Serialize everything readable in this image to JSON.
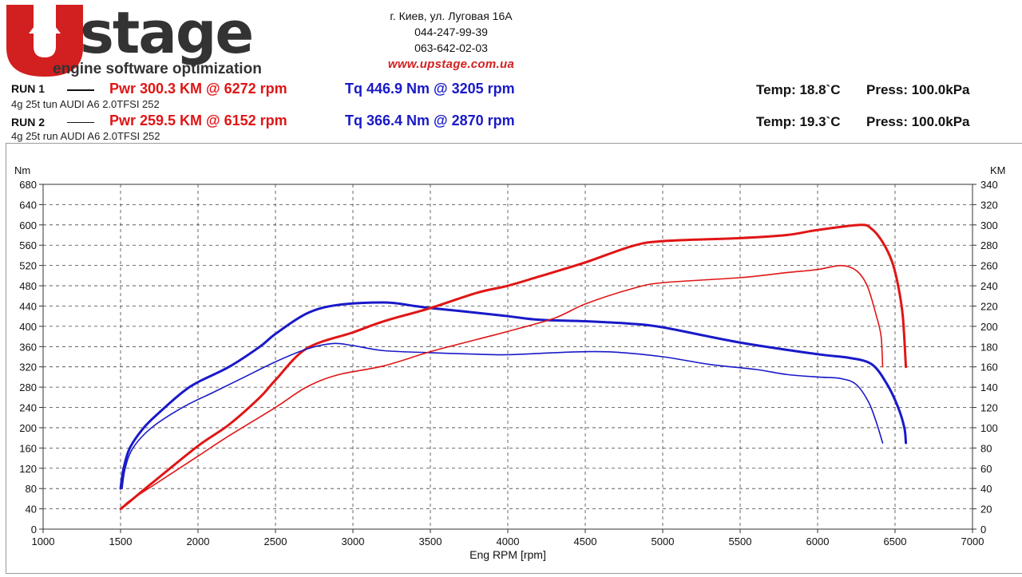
{
  "logo": {
    "brand": "stage",
    "tagline": "engine software optimization"
  },
  "contact": {
    "address": "г. Киев, ул. Луговая 16А",
    "phone1": "044-247-99-39",
    "phone2": "063-642-02-03",
    "url": "www.upstage.com.ua"
  },
  "runs": [
    {
      "label": "RUN 1",
      "car": "4g 25t tun AUDI A6 2.0TFSI 252",
      "pwr": "Pwr  300.3 KM @ 6272 rpm",
      "tq": "Tq 446.9 Nm @ 3205 rpm",
      "temp": "Temp: 18.8`C",
      "press": "Press: 100.0kPa"
    },
    {
      "label": "RUN 2",
      "car": "4g 25t run AUDI A6 2.0TFSI 252",
      "pwr": "Pwr  259.5 KM @ 6152 rpm",
      "tq": "Tq 366.4 Nm @ 2870 rpm",
      "temp": "Temp: 19.3`C",
      "press": "Press: 100.0kPa"
    }
  ],
  "colors": {
    "power": "#e01515",
    "torque": "#1919c8",
    "logo_red": "#d21f1f"
  },
  "chart_data": {
    "type": "line",
    "xlabel": "Eng RPM [rpm]",
    "ylabel_left": "Nm",
    "ylabel_right": "KM",
    "xlim": [
      1000,
      7000
    ],
    "ylim_left": [
      0,
      680
    ],
    "ylim_right": [
      0,
      340
    ],
    "x_ticks": [
      1000,
      1500,
      2000,
      2500,
      3000,
      3500,
      4000,
      4500,
      5000,
      5500,
      6000,
      6500,
      7000
    ],
    "y_ticks_left": [
      0,
      40,
      80,
      120,
      160,
      200,
      240,
      280,
      320,
      360,
      400,
      440,
      480,
      520,
      560,
      600,
      640,
      680
    ],
    "y_ticks_right": [
      0,
      20,
      40,
      60,
      80,
      100,
      120,
      140,
      160,
      180,
      200,
      220,
      240,
      260,
      280,
      300,
      320,
      340
    ],
    "grid": true,
    "series": [
      {
        "run": "RUN 1",
        "quantity": "torque",
        "axis": "left",
        "color": "#1919c8",
        "width": 3,
        "points": [
          [
            1500,
            80
          ],
          [
            1520,
            120
          ],
          [
            1560,
            160
          ],
          [
            1650,
            200
          ],
          [
            1750,
            230
          ],
          [
            1900,
            270
          ],
          [
            2000,
            290
          ],
          [
            2200,
            320
          ],
          [
            2400,
            360
          ],
          [
            2500,
            385
          ],
          [
            2700,
            425
          ],
          [
            2900,
            442
          ],
          [
            3205,
            447
          ],
          [
            3400,
            440
          ],
          [
            3500,
            436
          ],
          [
            3700,
            430
          ],
          [
            4000,
            420
          ],
          [
            4200,
            413
          ],
          [
            4500,
            410
          ],
          [
            4800,
            405
          ],
          [
            5000,
            398
          ],
          [
            5500,
            368
          ],
          [
            6000,
            345
          ],
          [
            6200,
            338
          ],
          [
            6350,
            325
          ],
          [
            6450,
            285
          ],
          [
            6520,
            240
          ],
          [
            6560,
            200
          ],
          [
            6570,
            170
          ]
        ]
      },
      {
        "run": "RUN 1",
        "quantity": "power",
        "axis": "right",
        "color": "#e01515",
        "width": 3,
        "points": [
          [
            1500,
            20
          ],
          [
            1550,
            26
          ],
          [
            1700,
            45
          ],
          [
            2000,
            82
          ],
          [
            2200,
            103
          ],
          [
            2400,
            130
          ],
          [
            2500,
            147
          ],
          [
            2700,
            178
          ],
          [
            3000,
            194
          ],
          [
            3200,
            205
          ],
          [
            3500,
            218
          ],
          [
            3800,
            233
          ],
          [
            4000,
            240
          ],
          [
            4200,
            249
          ],
          [
            4500,
            263
          ],
          [
            4800,
            279
          ],
          [
            5000,
            284
          ],
          [
            5500,
            287
          ],
          [
            5800,
            290
          ],
          [
            6000,
            295
          ],
          [
            6272,
            300
          ],
          [
            6350,
            296
          ],
          [
            6420,
            283
          ],
          [
            6480,
            264
          ],
          [
            6520,
            240
          ],
          [
            6550,
            210
          ],
          [
            6570,
            160
          ]
        ]
      },
      {
        "run": "RUN 2",
        "quantity": "torque",
        "axis": "left",
        "color": "#1919c8",
        "width": 1.6,
        "points": [
          [
            1510,
            80
          ],
          [
            1530,
            120
          ],
          [
            1580,
            160
          ],
          [
            1700,
            200
          ],
          [
            1900,
            240
          ],
          [
            2100,
            270
          ],
          [
            2300,
            300
          ],
          [
            2500,
            330
          ],
          [
            2700,
            355
          ],
          [
            2870,
            366
          ],
          [
            3000,
            362
          ],
          [
            3200,
            352
          ],
          [
            3500,
            348
          ],
          [
            3800,
            345
          ],
          [
            4000,
            344
          ],
          [
            4300,
            348
          ],
          [
            4500,
            350
          ],
          [
            4700,
            349
          ],
          [
            5000,
            340
          ],
          [
            5300,
            325
          ],
          [
            5600,
            315
          ],
          [
            5800,
            305
          ],
          [
            6000,
            300
          ],
          [
            6150,
            297
          ],
          [
            6250,
            285
          ],
          [
            6330,
            250
          ],
          [
            6380,
            210
          ],
          [
            6410,
            180
          ],
          [
            6420,
            170
          ]
        ]
      },
      {
        "run": "RUN 2",
        "quantity": "power",
        "axis": "right",
        "color": "#e01515",
        "width": 1.6,
        "points": [
          [
            1510,
            20
          ],
          [
            1550,
            27
          ],
          [
            1700,
            42
          ],
          [
            2000,
            72
          ],
          [
            2200,
            92
          ],
          [
            2500,
            120
          ],
          [
            2700,
            140
          ],
          [
            2900,
            152
          ],
          [
            3200,
            161
          ],
          [
            3500,
            175
          ],
          [
            3800,
            187
          ],
          [
            4000,
            195
          ],
          [
            4300,
            208
          ],
          [
            4500,
            222
          ],
          [
            4800,
            237
          ],
          [
            5000,
            243
          ],
          [
            5500,
            248
          ],
          [
            5800,
            253
          ],
          [
            6000,
            256
          ],
          [
            6152,
            260
          ],
          [
            6250,
            255
          ],
          [
            6320,
            240
          ],
          [
            6380,
            210
          ],
          [
            6410,
            190
          ],
          [
            6420,
            160
          ]
        ]
      }
    ]
  }
}
